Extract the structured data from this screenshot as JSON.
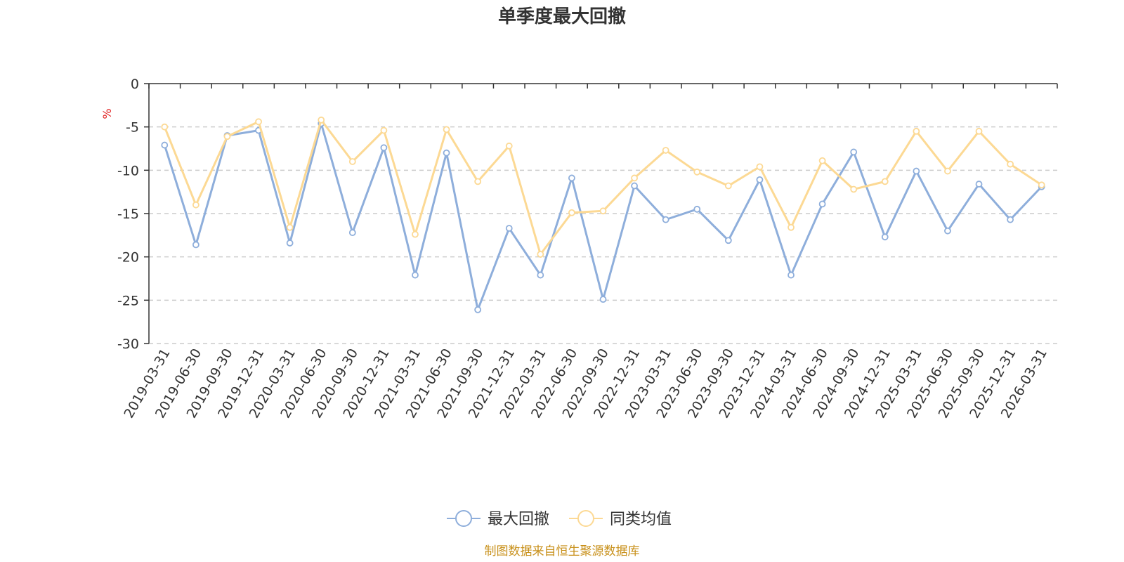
{
  "chart_data": {
    "type": "line",
    "title": "单季度最大回撤",
    "ylabel": "%",
    "ylim": [
      -30,
      0
    ],
    "yticks": [
      0,
      -5,
      -10,
      -15,
      -20,
      -25,
      -30
    ],
    "grid": true,
    "legend_position": "bottom-center",
    "categories": [
      "2019-03-31",
      "2019-06-30",
      "2019-09-30",
      "2019-12-31",
      "2020-03-31",
      "2020-06-30",
      "2020-09-30",
      "2020-12-31",
      "2021-03-31",
      "2021-06-30",
      "2021-09-30",
      "2021-12-31",
      "2022-03-31",
      "2022-06-30",
      "2022-09-30",
      "2022-12-31",
      "2023-03-31",
      "2023-06-30",
      "2023-09-30",
      "2023-12-31",
      "2024-03-31",
      "2024-06-30",
      "2024-09-30",
      "2024-12-31",
      "2025-03-31",
      "2025-06-30",
      "2025-09-30",
      "2025-12-31",
      "2026-03-31"
    ],
    "series": [
      {
        "name": "最大回撤",
        "color": "#8eaedb",
        "values": [
          -7.1,
          -18.6,
          -6.0,
          -5.4,
          -18.4,
          -4.6,
          -17.2,
          -7.4,
          -22.1,
          -8.0,
          -26.1,
          -16.7,
          -22.1,
          -10.9,
          -24.9,
          -11.8,
          -15.7,
          -14.5,
          -18.1,
          -11.1,
          -22.1,
          -13.9,
          -7.9,
          -17.7,
          -10.1,
          -17.0,
          -11.6,
          -15.7,
          -11.9
        ]
      },
      {
        "name": "同类均值",
        "color": "#fcd994",
        "values": [
          -5.0,
          -14.0,
          -6.1,
          -4.4,
          -16.6,
          -4.2,
          -9.0,
          -5.4,
          -17.4,
          -5.3,
          -11.3,
          -7.2,
          -19.7,
          -14.9,
          -14.7,
          -10.9,
          -7.7,
          -10.2,
          -11.8,
          -9.6,
          -16.6,
          -8.9,
          -12.2,
          -11.3,
          -5.5,
          -10.1,
          -5.5,
          -9.3,
          -11.7
        ]
      }
    ]
  },
  "footer": {
    "source": "制图数据来自恒生聚源数据库"
  }
}
